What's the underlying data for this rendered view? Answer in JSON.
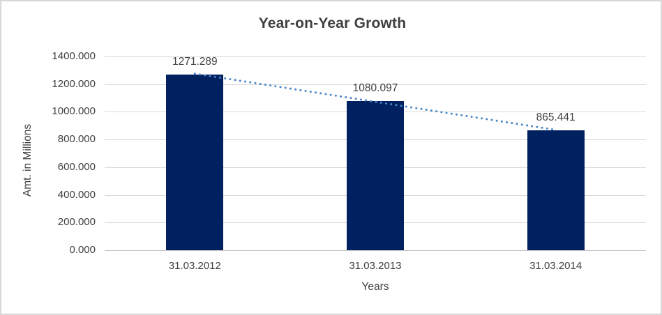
{
  "chart_data": {
    "type": "bar",
    "title": "Year-on-Year Growth",
    "xlabel": "Years",
    "ylabel": "Amt. in Millions",
    "categories": [
      "31.03.2012",
      "31.03.2013",
      "31.03.2014"
    ],
    "values": [
      1271.289,
      1080.097,
      865.441
    ],
    "data_labels": [
      "1271.289",
      "1080.097",
      "865.441"
    ],
    "ylim": [
      0,
      1400
    ],
    "ytick_step": 200,
    "ytick_labels": [
      "0.000",
      "200.000",
      "400.000",
      "600.000",
      "800.000",
      "1000.000",
      "1200.000",
      "1400.000"
    ],
    "grid": true,
    "legend": "none",
    "trendline": {
      "type": "linear",
      "style": "dotted"
    },
    "colors": {
      "bar": "#002060",
      "trendline": "#4a86c8",
      "gridline": "#d9d9d9",
      "axis_line": "#c6c6c6",
      "text": "#404040",
      "title_text": "#3f3f3f",
      "background": "#ffffff",
      "border": "#d8d8d8"
    }
  }
}
